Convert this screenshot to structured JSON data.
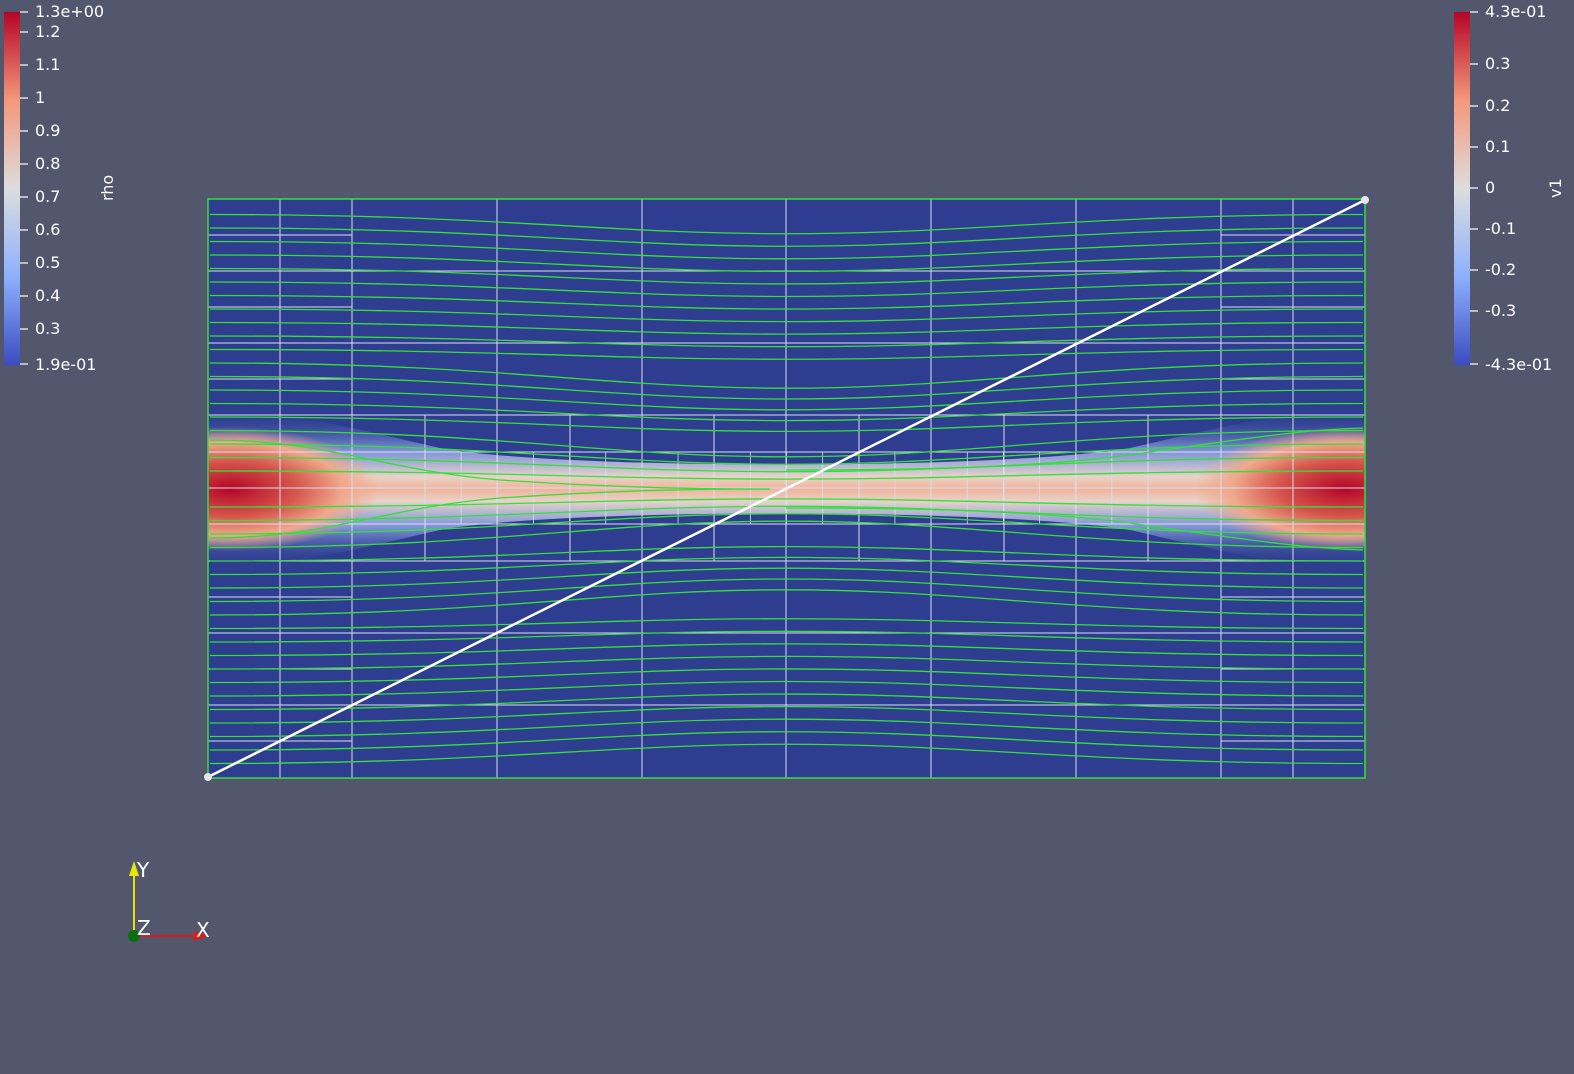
{
  "colors": {
    "background": "#52576e",
    "field_low": "#2e3d8f",
    "grid_line": "#dcdcf0",
    "streamline": "#33e03a",
    "probe_line": "#ffffff",
    "axis_x": "#e01a1a",
    "axis_y": "#e6e600",
    "axis_z": "#0d6e0d"
  },
  "colorbars": {
    "rho": {
      "title": "rho",
      "max_label": "1.3e+00",
      "min_label": "1.9e-01",
      "ticks": [
        "1.2",
        "1.1",
        "1",
        "0.9",
        "0.8",
        "0.7",
        "0.6",
        "0.5",
        "0.4",
        "0.3"
      ]
    },
    "v1": {
      "title": "v1",
      "max_label": "4.3e-01",
      "min_label": "-4.3e-01",
      "ticks": [
        "0.3",
        "0.2",
        "0.1",
        "0",
        "-0.1",
        "-0.2",
        "-0.3"
      ]
    }
  },
  "orientation_axes": {
    "x_label": "X",
    "y_label": "Y",
    "z_label": "Z"
  }
}
